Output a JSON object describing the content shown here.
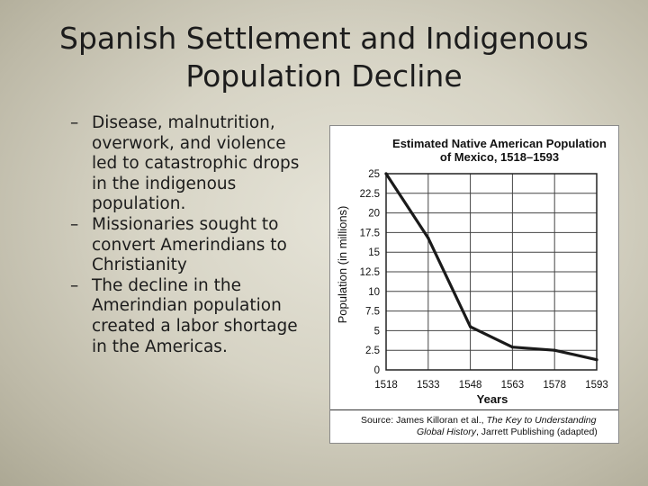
{
  "slide": {
    "title_line1": "Spanish Settlement and Indigenous",
    "title_line2": "Population Decline",
    "bullets": [
      "Disease, malnutrition, overwork, and violence led to catastrophic drops in the indigenous population.",
      "Missionaries sought to convert Amerindians to Christianity",
      "The decline in the Amerindian population created a labor shortage in the Americas."
    ]
  },
  "chart_data": {
    "type": "line",
    "title_line1": "Estimated Native American Population",
    "title_line2": "of Mexico, 1518–1593",
    "xlabel": "Years",
    "ylabel": "Population (in millions)",
    "x": [
      1518,
      1533,
      1548,
      1563,
      1578,
      1593
    ],
    "series": [
      {
        "values": [
          25.0,
          16.8,
          5.5,
          2.9,
          2.5,
          1.3
        ]
      }
    ],
    "xlim": [
      1518,
      1593
    ],
    "ylim": [
      0,
      25
    ],
    "yticks": [
      0,
      2.5,
      5,
      7.5,
      10,
      12.5,
      15,
      17.5,
      20,
      22.5,
      25
    ],
    "ytick_labels": [
      "0",
      "2.5",
      "5",
      "7.5",
      "10",
      "12.5",
      "15",
      "17.5",
      "20",
      "22.5",
      "25"
    ],
    "xtick_labels": [
      "1518",
      "1533",
      "1548",
      "1563",
      "1578",
      "1593"
    ],
    "grid": true,
    "line_color": "#1a1a1a",
    "source_prefix": "Source: James Killoran et al., ",
    "source_title_a": "The Key to Understanding",
    "source_title_b": "Global History",
    "source_suffix": ", Jarrett Publishing (adapted)"
  }
}
